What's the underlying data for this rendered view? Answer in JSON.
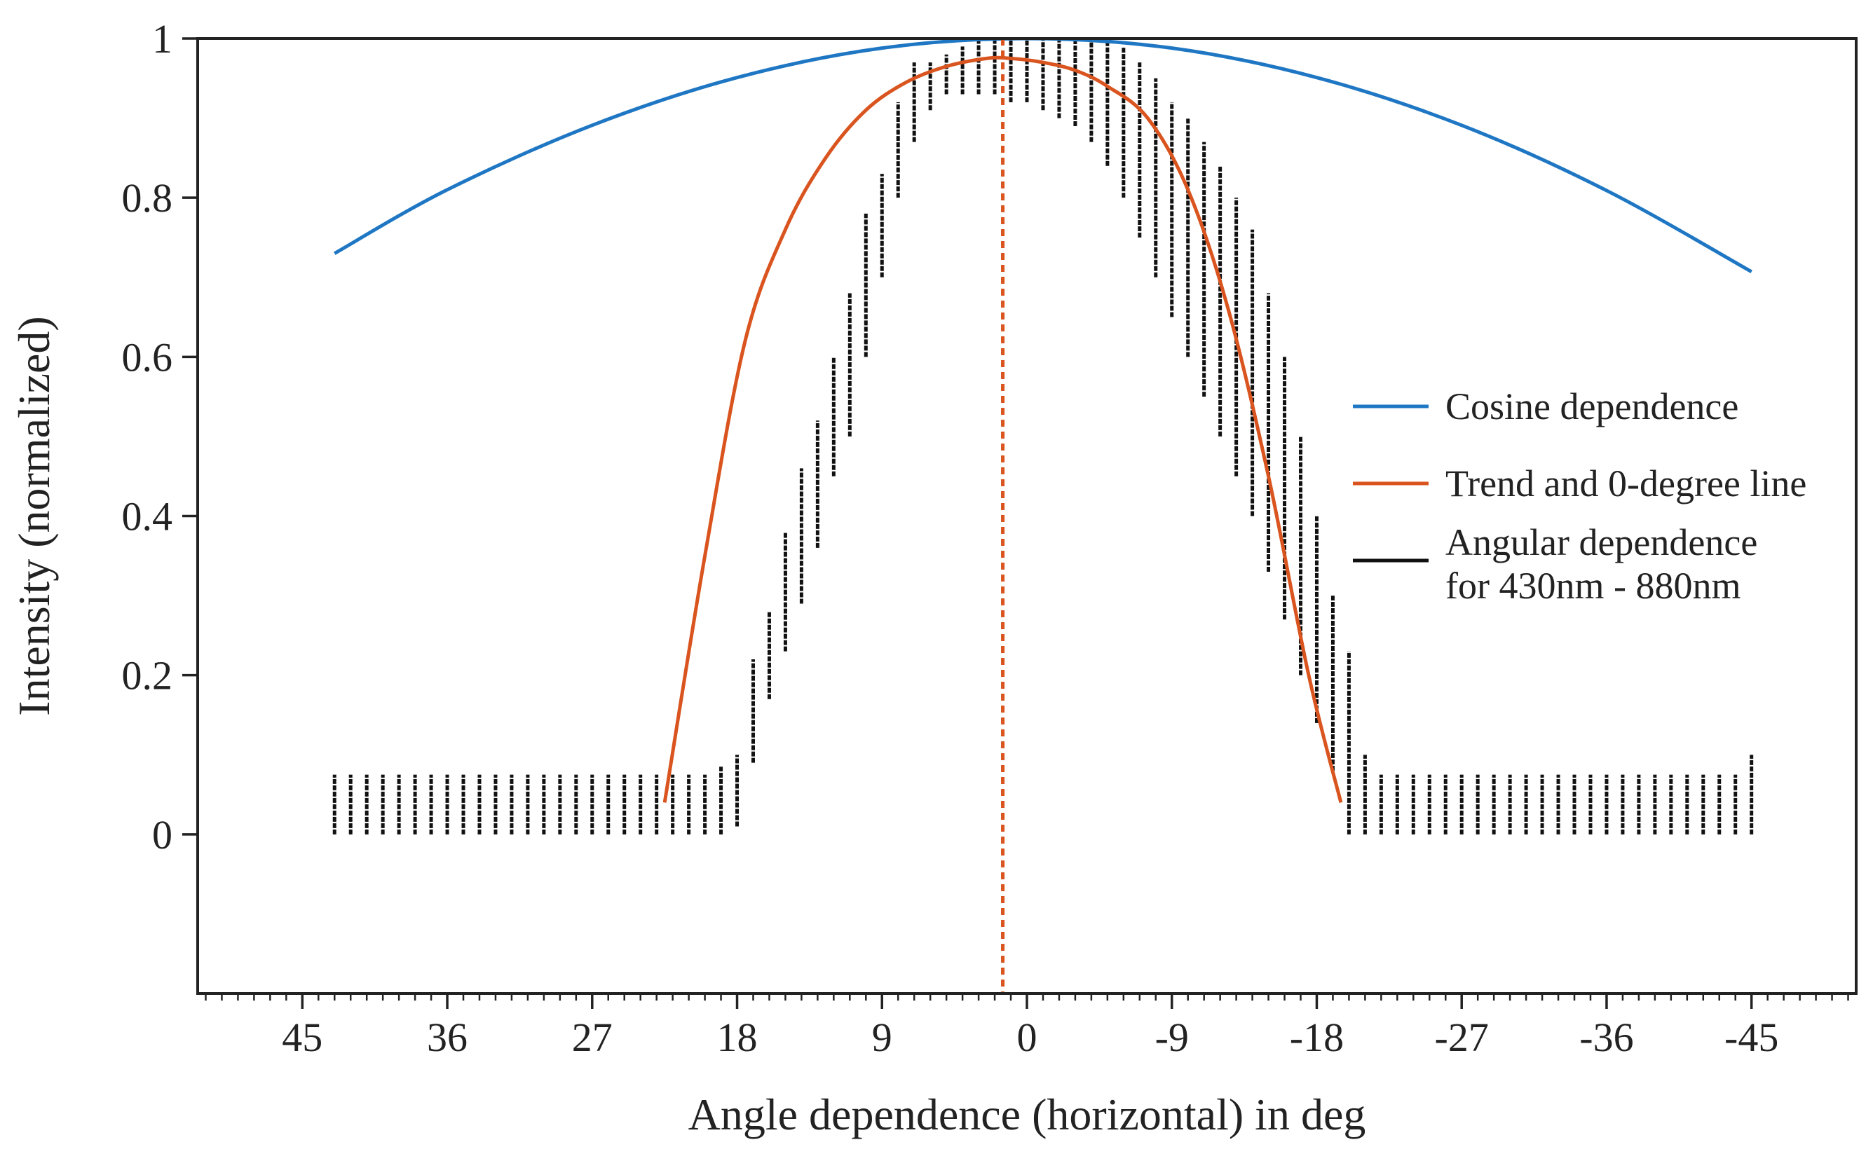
{
  "colors": {
    "cosine": "#1f77c4",
    "trend": "#d9541e",
    "samples": "#111111",
    "frame": "#222222"
  },
  "chart_data": {
    "type": "line",
    "title": "",
    "xlabel": "Angle dependence (horizontal) in deg",
    "ylabel": "Intensity (normalized)",
    "x_reversed": true,
    "xlim": [
      51.5,
      -51.5
    ],
    "ylim": [
      -0.2,
      1.0
    ],
    "xticks": [
      45,
      36,
      27,
      18,
      9,
      0,
      -9,
      -18,
      -27,
      -36,
      -45
    ],
    "xtick_labels": [
      "45",
      "36",
      "27",
      "18",
      "9",
      "0",
      "-9",
      "-18",
      "-27",
      "-36",
      "-45"
    ],
    "x_minor_step": 1,
    "yticks": [
      0,
      0.2,
      0.4,
      0.6,
      0.8,
      1
    ],
    "ytick_labels": [
      "0",
      "0.2",
      "0.4",
      "0.6",
      "0.8",
      "1"
    ],
    "legend_position": "center-right",
    "series": [
      {
        "name": "Cosine dependence",
        "kind": "line",
        "color_key": "cosine",
        "x": [
          43,
          36,
          27,
          18,
          9,
          0,
          -9,
          -18,
          -27,
          -36,
          -45
        ],
        "y": [
          0.73,
          0.81,
          0.891,
          0.951,
          0.988,
          1.0,
          0.988,
          0.951,
          0.891,
          0.809,
          0.707
        ]
      },
      {
        "name": "Trend and 0-degree line",
        "kind": "line",
        "color_key": "trend",
        "x": [
          22.5,
          20,
          17.5,
          15,
          12.5,
          10,
          7.5,
          5,
          2.5,
          1,
          -1,
          -3,
          -5,
          -7.5,
          -10,
          -12.5,
          -15,
          -17.5,
          -19.5
        ],
        "y": [
          0.04,
          0.35,
          0.62,
          0.76,
          0.85,
          0.91,
          0.945,
          0.965,
          0.975,
          0.975,
          0.97,
          0.96,
          0.94,
          0.9,
          0.81,
          0.66,
          0.45,
          0.2,
          0.04
        ],
        "zero_line_x": 1.5
      },
      {
        "name": "Angular dependence\nfor 430nm - 880nm",
        "kind": "vertical-ranges",
        "color_key": "samples",
        "x": [
          43,
          42,
          41,
          40,
          39,
          38,
          37,
          36,
          35,
          34,
          33,
          32,
          31,
          30,
          29,
          28,
          27,
          26,
          25,
          24,
          23,
          22,
          21,
          20,
          19,
          18,
          17,
          16,
          15,
          14,
          13,
          12,
          11,
          10,
          9,
          8,
          7,
          6,
          5,
          4,
          3,
          2,
          1,
          0,
          -1,
          -2,
          -3,
          -4,
          -5,
          -6,
          -7,
          -8,
          -9,
          -10,
          -11,
          -12,
          -13,
          -14,
          -15,
          -16,
          -17,
          -18,
          -19,
          -20,
          -21,
          -22,
          -23,
          -24,
          -25,
          -26,
          -27,
          -28,
          -29,
          -30,
          -31,
          -32,
          -33,
          -34,
          -35,
          -36,
          -37,
          -38,
          -39,
          -40,
          -41,
          -42,
          -43,
          -44,
          -45
        ],
        "low": [
          0,
          0,
          0,
          0,
          0,
          0,
          0,
          0,
          0,
          0,
          0,
          0,
          0,
          0,
          0,
          0,
          0,
          0,
          0,
          0,
          0,
          0,
          0,
          0,
          0,
          0.01,
          0.09,
          0.17,
          0.23,
          0.29,
          0.36,
          0.45,
          0.5,
          0.6,
          0.7,
          0.8,
          0.87,
          0.91,
          0.93,
          0.93,
          0.93,
          0.93,
          0.92,
          0.92,
          0.91,
          0.9,
          0.89,
          0.87,
          0.84,
          0.8,
          0.75,
          0.7,
          0.65,
          0.6,
          0.55,
          0.5,
          0.45,
          0.4,
          0.33,
          0.27,
          0.2,
          0.14,
          0.08,
          0,
          0,
          0,
          0,
          0,
          0,
          0,
          0,
          0,
          0,
          0,
          0,
          0,
          0,
          0,
          0,
          0,
          0,
          0,
          0,
          0,
          0,
          0,
          0,
          0,
          0
        ],
        "high": [
          0.075,
          0.075,
          0.075,
          0.075,
          0.075,
          0.075,
          0.075,
          0.075,
          0.075,
          0.075,
          0.075,
          0.075,
          0.075,
          0.075,
          0.075,
          0.075,
          0.075,
          0.075,
          0.075,
          0.075,
          0.075,
          0.075,
          0.075,
          0.075,
          0.085,
          0.1,
          0.22,
          0.28,
          0.38,
          0.46,
          0.52,
          0.6,
          0.68,
          0.78,
          0.83,
          0.92,
          0.97,
          0.97,
          0.98,
          0.99,
          1.0,
          1.0,
          1.0,
          1.0,
          1.0,
          1.0,
          1.0,
          1.0,
          1.0,
          0.99,
          0.97,
          0.95,
          0.92,
          0.9,
          0.87,
          0.84,
          0.8,
          0.76,
          0.68,
          0.6,
          0.5,
          0.4,
          0.3,
          0.23,
          0.1,
          0.075,
          0.075,
          0.075,
          0.075,
          0.075,
          0.075,
          0.075,
          0.075,
          0.075,
          0.075,
          0.075,
          0.075,
          0.075,
          0.075,
          0.075,
          0.075,
          0.075,
          0.075,
          0.075,
          0.075,
          0.075,
          0.075,
          0.075,
          0.1
        ]
      }
    ]
  }
}
